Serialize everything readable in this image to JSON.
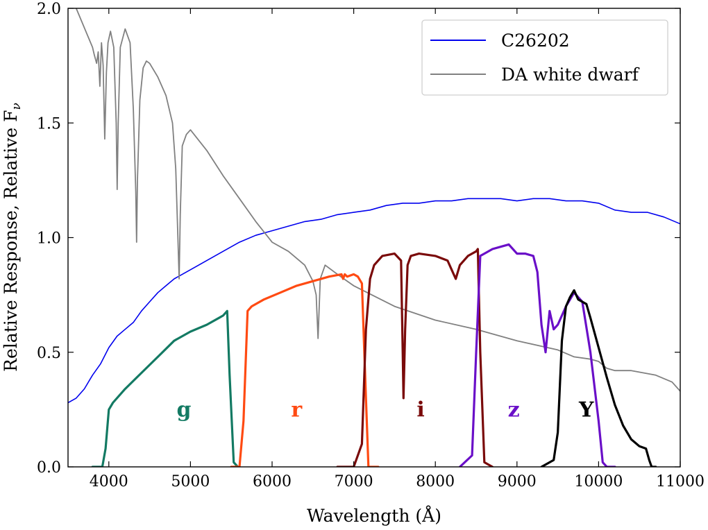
{
  "chart_data": {
    "type": "line",
    "xlabel": "Wavelength (Å)",
    "ylabel": "Relative Response, Relative F",
    "ylabel_sub": "ν",
    "xlim": [
      3500,
      11000
    ],
    "ylim": [
      0.0,
      2.0
    ],
    "x_ticks": [
      4000,
      5000,
      6000,
      7000,
      8000,
      9000,
      10000,
      11000
    ],
    "y_ticks": [
      0.0,
      0.5,
      1.0,
      1.5,
      2.0
    ],
    "y_tick_labels": [
      "0.0",
      "0.5",
      "1.0",
      "1.5",
      "2.0"
    ],
    "grid": false,
    "legend": {
      "position": "top-right",
      "entries": [
        "C26202",
        "DA white dwarf"
      ]
    },
    "series": [
      {
        "name": "C26202",
        "color": "#0000ee",
        "width": 1.6,
        "x": [
          3500,
          3600,
          3700,
          3800,
          3900,
          4000,
          4100,
          4200,
          4300,
          4400,
          4500,
          4600,
          4700,
          4800,
          4900,
          5000,
          5200,
          5400,
          5600,
          5800,
          6000,
          6200,
          6400,
          6600,
          6800,
          7000,
          7200,
          7400,
          7600,
          7800,
          8000,
          8200,
          8400,
          8600,
          8800,
          9000,
          9200,
          9400,
          9600,
          9800,
          10000,
          10200,
          10400,
          10600,
          10800,
          11000
        ],
        "y": [
          0.28,
          0.3,
          0.34,
          0.4,
          0.45,
          0.52,
          0.57,
          0.6,
          0.63,
          0.68,
          0.72,
          0.76,
          0.79,
          0.82,
          0.84,
          0.86,
          0.9,
          0.94,
          0.98,
          1.01,
          1.03,
          1.05,
          1.07,
          1.08,
          1.1,
          1.11,
          1.12,
          1.14,
          1.15,
          1.15,
          1.16,
          1.16,
          1.17,
          1.17,
          1.17,
          1.16,
          1.17,
          1.17,
          1.16,
          1.16,
          1.15,
          1.12,
          1.11,
          1.11,
          1.09,
          1.06
        ]
      },
      {
        "name": "DA white dwarf",
        "color": "#808080",
        "width": 1.8,
        "x": [
          3600,
          3800,
          3820,
          3850,
          3870,
          3890,
          3910,
          3930,
          3950,
          3970,
          3990,
          4020,
          4060,
          4090,
          4102,
          4115,
          4140,
          4200,
          4260,
          4300,
          4330,
          4340,
          4350,
          4380,
          4420,
          4460,
          4500,
          4600,
          4700,
          4780,
          4820,
          4850,
          4861,
          4875,
          4900,
          4950,
          5000,
          5200,
          5400,
          5600,
          5800,
          6000,
          6200,
          6400,
          6500,
          6540,
          6563,
          6590,
          6650,
          6800,
          7000,
          7500,
          8000,
          8500,
          9000,
          9500,
          9700,
          9900,
          10000,
          10100,
          10200,
          10400,
          10700,
          10900,
          11000
        ],
        "y": [
          2.0,
          1.83,
          1.8,
          1.76,
          1.81,
          1.66,
          1.85,
          1.75,
          1.43,
          1.72,
          1.85,
          1.9,
          1.83,
          1.5,
          1.21,
          1.5,
          1.83,
          1.91,
          1.85,
          1.56,
          1.2,
          0.98,
          1.25,
          1.6,
          1.74,
          1.77,
          1.76,
          1.7,
          1.62,
          1.5,
          1.3,
          0.95,
          0.82,
          1.1,
          1.4,
          1.45,
          1.47,
          1.38,
          1.27,
          1.17,
          1.07,
          0.98,
          0.94,
          0.88,
          0.81,
          0.75,
          0.56,
          0.82,
          0.88,
          0.84,
          0.79,
          0.7,
          0.64,
          0.6,
          0.55,
          0.51,
          0.48,
          0.47,
          0.46,
          0.43,
          0.42,
          0.42,
          0.4,
          0.37,
          0.33
        ]
      },
      {
        "name": "g",
        "color": "#137a63",
        "width": 3.2,
        "x": [
          3800,
          3920,
          3960,
          4000,
          4050,
          4200,
          4400,
          4600,
          4800,
          5000,
          5200,
          5350,
          5400,
          5450,
          5480,
          5530,
          5580
        ],
        "y": [
          0.0,
          0.0,
          0.08,
          0.25,
          0.28,
          0.34,
          0.41,
          0.48,
          0.55,
          0.59,
          0.62,
          0.65,
          0.66,
          0.68,
          0.4,
          0.02,
          0.0
        ]
      },
      {
        "name": "r",
        "color": "#ff4a12",
        "width": 3.2,
        "x": [
          5500,
          5600,
          5650,
          5700,
          5750,
          5900,
          6100,
          6300,
          6500,
          6700,
          6850,
          6870,
          6890,
          6920,
          7000,
          7050,
          7100,
          7150,
          7180,
          7300
        ],
        "y": [
          0.0,
          0.0,
          0.2,
          0.68,
          0.7,
          0.73,
          0.76,
          0.79,
          0.81,
          0.83,
          0.84,
          0.82,
          0.84,
          0.83,
          0.84,
          0.83,
          0.8,
          0.3,
          0.0,
          0.0
        ]
      },
      {
        "name": "i",
        "color": "#7a0a0a",
        "width": 3.2,
        "x": [
          6800,
          7000,
          7100,
          7150,
          7200,
          7250,
          7350,
          7500,
          7580,
          7600,
          7610,
          7630,
          7660,
          7700,
          7800,
          8000,
          8150,
          8200,
          8250,
          8300,
          8400,
          8500,
          8520,
          8550,
          8600,
          8700
        ],
        "y": [
          0.0,
          0.0,
          0.1,
          0.6,
          0.82,
          0.88,
          0.92,
          0.93,
          0.9,
          0.5,
          0.3,
          0.6,
          0.88,
          0.92,
          0.93,
          0.92,
          0.9,
          0.86,
          0.82,
          0.88,
          0.92,
          0.94,
          0.95,
          0.5,
          0.02,
          0.0
        ]
      },
      {
        "name": "z",
        "color": "#6a0fc8",
        "width": 3.2,
        "x": [
          8300,
          8450,
          8500,
          8550,
          8600,
          8700,
          8800,
          8900,
          9000,
          9100,
          9200,
          9250,
          9300,
          9350,
          9400,
          9450,
          9500,
          9600,
          9700,
          9800,
          9900,
          10000,
          10050,
          10100,
          10200
        ],
        "y": [
          0.0,
          0.05,
          0.5,
          0.92,
          0.93,
          0.95,
          0.96,
          0.97,
          0.93,
          0.93,
          0.92,
          0.85,
          0.62,
          0.5,
          0.68,
          0.6,
          0.62,
          0.7,
          0.76,
          0.72,
          0.5,
          0.2,
          0.02,
          0.0,
          0.0
        ]
      },
      {
        "name": "Y",
        "color": "#000000",
        "width": 3.2,
        "x": [
          9300,
          9450,
          9500,
          9550,
          9600,
          9650,
          9700,
          9750,
          9800,
          9850,
          9900,
          10000,
          10100,
          10200,
          10300,
          10400,
          10500,
          10580,
          10620,
          10650,
          10700
        ],
        "y": [
          0.0,
          0.03,
          0.15,
          0.55,
          0.7,
          0.74,
          0.77,
          0.73,
          0.72,
          0.71,
          0.65,
          0.52,
          0.39,
          0.27,
          0.18,
          0.12,
          0.09,
          0.08,
          0.03,
          0.0,
          0.0
        ]
      }
    ],
    "annotations": [
      {
        "text": "g",
        "x": 4920,
        "y": 0.22,
        "color": "#137a63"
      },
      {
        "text": "r",
        "x": 6300,
        "y": 0.22,
        "color": "#ff4a12"
      },
      {
        "text": "i",
        "x": 7820,
        "y": 0.22,
        "color": "#7a0a0a"
      },
      {
        "text": "z",
        "x": 8960,
        "y": 0.22,
        "color": "#6a0fc8"
      },
      {
        "text": "Y",
        "x": 9850,
        "y": 0.22,
        "color": "#000000"
      }
    ]
  }
}
